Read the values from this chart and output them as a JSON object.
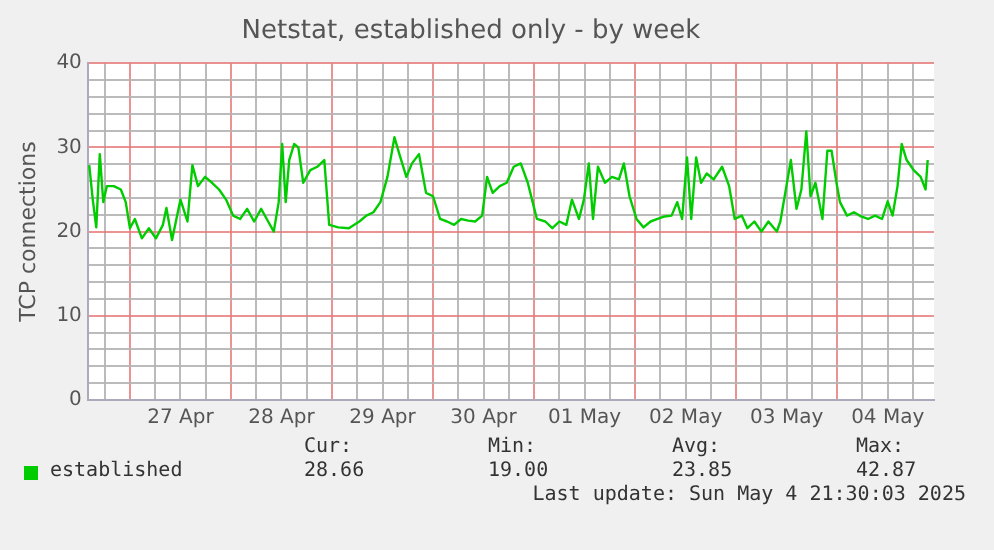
{
  "chart_data": {
    "type": "line",
    "title": "Netstat, established only - by week",
    "ylabel": "TCP connections",
    "xlim": [
      "2025-04-26T14:00",
      "2025-05-04T23:00"
    ],
    "xticks": [
      {
        "value": "2025-04-26T18:00",
        "label": null
      },
      {
        "value": "2025-04-27T00:00",
        "label": null
      },
      {
        "value": "2025-04-27T06:00",
        "label": null
      },
      {
        "value": "2025-04-27T12:00",
        "label": "27 Apr"
      },
      {
        "value": "2025-04-27T18:00",
        "label": null
      },
      {
        "value": "2025-04-28T00:00",
        "label": null
      },
      {
        "value": "2025-04-28T06:00",
        "label": null
      },
      {
        "value": "2025-04-28T12:00",
        "label": "28 Apr"
      },
      {
        "value": "2025-04-28T18:00",
        "label": null
      },
      {
        "value": "2025-04-29T00:00",
        "label": null
      },
      {
        "value": "2025-04-29T06:00",
        "label": null
      },
      {
        "value": "2025-04-29T12:00",
        "label": "29 Apr"
      },
      {
        "value": "2025-04-29T18:00",
        "label": null
      },
      {
        "value": "2025-04-30T00:00",
        "label": null
      },
      {
        "value": "2025-04-30T06:00",
        "label": null
      },
      {
        "value": "2025-04-30T12:00",
        "label": "30 Apr"
      },
      {
        "value": "2025-04-30T18:00",
        "label": null
      },
      {
        "value": "2025-05-01T00:00",
        "label": null
      },
      {
        "value": "2025-05-01T06:00",
        "label": null
      },
      {
        "value": "2025-05-01T12:00",
        "label": "01 May"
      },
      {
        "value": "2025-05-01T18:00",
        "label": null
      },
      {
        "value": "2025-05-02T00:00",
        "label": null
      },
      {
        "value": "2025-05-02T06:00",
        "label": null
      },
      {
        "value": "2025-05-02T12:00",
        "label": "02 May"
      },
      {
        "value": "2025-05-02T18:00",
        "label": null
      },
      {
        "value": "2025-05-03T00:00",
        "label": null
      },
      {
        "value": "2025-05-03T06:00",
        "label": null
      },
      {
        "value": "2025-05-03T12:00",
        "label": "03 May"
      },
      {
        "value": "2025-05-03T18:00",
        "label": null
      },
      {
        "value": "2025-05-04T00:00",
        "label": null
      },
      {
        "value": "2025-05-04T06:00",
        "label": null
      },
      {
        "value": "2025-05-04T12:00",
        "label": "04 May"
      },
      {
        "value": "2025-05-04T18:00",
        "label": null
      }
    ],
    "ylim": [
      0,
      40
    ],
    "yticks": [
      0,
      {
        "value": 2,
        "label": null
      },
      {
        "value": 4,
        "label": null
      },
      {
        "value": 6,
        "label": null
      },
      {
        "value": 8,
        "label": null
      },
      10,
      {
        "value": 12,
        "label": null
      },
      {
        "value": 14,
        "label": null
      },
      {
        "value": 16,
        "label": null
      },
      {
        "value": 18,
        "label": null
      },
      20,
      {
        "value": 22,
        "label": null
      },
      {
        "value": 24,
        "label": null
      },
      {
        "value": 26,
        "label": null
      },
      {
        "value": 28,
        "label": null
      },
      30,
      {
        "value": 32,
        "label": null
      },
      {
        "value": 34,
        "label": null
      },
      {
        "value": 36,
        "label": null
      },
      {
        "value": 38,
        "label": null
      },
      40
    ],
    "grid": true,
    "legend": "bottom",
    "marker": "none",
    "line_style": "solid",
    "series": [
      {
        "name": "established",
        "color": "#00cc00",
        "x": [
          "2025-04-26T14:20",
          "2025-04-26T15:10",
          "2025-04-26T16:00",
          "2025-04-26T16:50",
          "2025-04-26T17:40",
          "2025-04-26T18:30",
          "2025-04-26T20:10",
          "2025-04-26T21:50",
          "2025-04-26T23:00",
          "2025-04-27T00:00",
          "2025-04-27T01:10",
          "2025-04-27T02:50",
          "2025-04-27T04:30",
          "2025-04-27T06:10",
          "2025-04-27T07:50",
          "2025-04-27T08:40",
          "2025-04-27T10:00",
          "2025-04-27T12:00",
          "2025-04-27T13:40",
          "2025-04-27T14:50",
          "2025-04-27T16:10",
          "2025-04-27T17:50",
          "2025-04-27T19:30",
          "2025-04-27T21:10",
          "2025-04-27T22:50",
          "2025-04-28T00:30",
          "2025-04-28T02:10",
          "2025-04-28T03:50",
          "2025-04-28T05:30",
          "2025-04-28T07:10",
          "2025-04-28T08:50",
          "2025-04-28T10:10",
          "2025-04-28T11:20",
          "2025-04-28T12:10",
          "2025-04-28T13:00",
          "2025-04-28T13:50",
          "2025-04-28T15:00",
          "2025-04-28T16:00",
          "2025-04-28T17:10",
          "2025-04-28T18:50",
          "2025-04-28T20:30",
          "2025-04-28T22:10",
          "2025-04-28T23:20",
          "2025-04-29T01:30",
          "2025-04-29T04:00",
          "2025-04-29T06:30",
          "2025-04-29T08:10",
          "2025-04-29T09:50",
          "2025-04-29T11:30",
          "2025-04-29T13:10",
          "2025-04-29T14:50",
          "2025-04-29T16:00",
          "2025-04-29T17:40",
          "2025-04-29T19:00",
          "2025-04-29T20:40",
          "2025-04-29T22:20",
          "2025-04-30T00:00",
          "2025-04-30T01:40",
          "2025-04-30T03:20",
          "2025-04-30T05:00",
          "2025-04-30T06:40",
          "2025-04-30T08:20",
          "2025-04-30T10:00",
          "2025-04-30T11:40",
          "2025-04-30T12:50",
          "2025-04-30T14:10",
          "2025-04-30T15:50",
          "2025-04-30T17:30",
          "2025-04-30T19:10",
          "2025-04-30T20:50",
          "2025-04-30T22:30",
          "2025-04-30T23:40",
          "2025-05-01T00:40",
          "2025-05-01T02:40",
          "2025-05-01T04:20",
          "2025-05-01T06:00",
          "2025-05-01T07:40",
          "2025-05-01T09:00",
          "2025-05-01T10:40",
          "2025-05-01T11:50",
          "2025-05-01T13:00",
          "2025-05-01T14:00",
          "2025-05-01T15:10",
          "2025-05-01T16:50",
          "2025-05-01T18:30",
          "2025-05-01T20:10",
          "2025-05-01T21:20",
          "2025-05-01T22:40",
          "2025-05-02T00:20",
          "2025-05-02T02:00",
          "2025-05-02T03:40",
          "2025-05-02T05:20",
          "2025-05-02T07:00",
          "2025-05-02T08:40",
          "2025-05-02T10:00",
          "2025-05-02T11:10",
          "2025-05-02T12:20",
          "2025-05-02T13:20",
          "2025-05-02T14:30",
          "2025-05-02T15:40",
          "2025-05-02T17:00",
          "2025-05-02T18:40",
          "2025-05-02T20:40",
          "2025-05-02T22:20",
          "2025-05-02T23:40",
          "2025-05-03T01:20",
          "2025-05-03T02:40",
          "2025-05-03T04:20",
          "2025-05-03T06:00",
          "2025-05-03T07:40",
          "2025-05-03T09:40",
          "2025-05-03T10:30",
          "2025-05-03T11:40",
          "2025-05-03T13:00",
          "2025-05-03T14:20",
          "2025-05-03T15:30",
          "2025-05-03T16:40",
          "2025-05-03T17:40",
          "2025-05-03T18:50",
          "2025-05-03T20:30",
          "2025-05-03T21:40",
          "2025-05-03T22:40",
          "2025-05-03T23:50",
          "2025-05-04T00:40",
          "2025-05-04T02:20",
          "2025-05-04T04:00",
          "2025-05-04T05:40",
          "2025-05-04T07:20",
          "2025-05-04T09:00",
          "2025-05-04T10:40",
          "2025-05-04T12:00",
          "2025-05-04T13:10",
          "2025-05-04T14:20",
          "2025-05-04T15:20",
          "2025-05-04T16:30",
          "2025-05-04T18:10",
          "2025-05-04T19:50",
          "2025-05-04T21:00",
          "2025-05-04T21:30"
        ],
        "values": [
          27.9,
          23.8,
          20.5,
          29.2,
          23.5,
          25.4,
          25.4,
          25,
          23.5,
          20.4,
          21.5,
          19.2,
          20.4,
          19.2,
          20.8,
          22.8,
          19,
          23.8,
          21.2,
          27.9,
          25.4,
          26.5,
          25.8,
          25,
          23.8,
          21.9,
          21.5,
          22.7,
          21.2,
          22.7,
          21.2,
          20,
          23.5,
          30.4,
          23.5,
          28.5,
          30.4,
          30,
          25.8,
          27.3,
          27.7,
          28.5,
          20.8,
          20.5,
          20.4,
          21.2,
          21.9,
          22.3,
          23.5,
          26.5,
          31.2,
          29.2,
          26.5,
          28.1,
          29.2,
          24.6,
          24.2,
          21.5,
          21.2,
          20.8,
          21.5,
          21.3,
          21.2,
          21.9,
          26.5,
          24.6,
          25.4,
          25.8,
          27.7,
          28.1,
          25.8,
          23.5,
          21.5,
          21.2,
          20.4,
          21.2,
          20.8,
          23.8,
          21.5,
          23.8,
          28.1,
          21.5,
          27.7,
          25.8,
          26.5,
          26.2,
          28.1,
          24.2,
          21.5,
          20.5,
          21.2,
          21.5,
          21.8,
          21.9,
          23.5,
          21.5,
          28.8,
          21.5,
          28.8,
          25.8,
          26.9,
          26.2,
          27.7,
          25.4,
          21.5,
          21.9,
          20.4,
          21.2,
          20,
          21.2,
          20,
          21.2,
          24.6,
          28.5,
          22.7,
          25,
          31.9,
          24.2,
          25.8,
          21.5,
          29.6,
          29.6,
          25.8,
          23.5,
          21.9,
          22.3,
          21.8,
          21.5,
          21.9,
          21.5,
          23.6,
          21.9,
          25.4,
          30.4,
          28.5,
          27.3,
          26.5,
          25,
          28.5
        ]
      }
    ],
    "annotations": [
      "Cur:",
      "Min:",
      "Avg:",
      "Max:",
      "28.66",
      "19.00",
      "23.85",
      "42.87",
      "Last update: Sun May  4 21:30:03 2025"
    ]
  }
}
